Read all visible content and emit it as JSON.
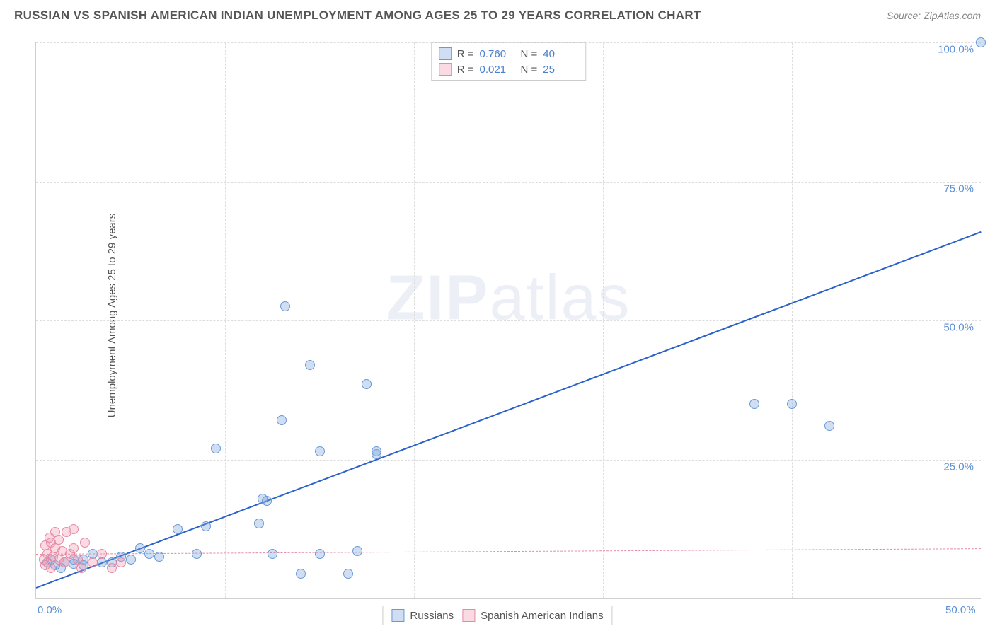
{
  "header": {
    "title": "RUSSIAN VS SPANISH AMERICAN INDIAN UNEMPLOYMENT AMONG AGES 25 TO 29 YEARS CORRELATION CHART",
    "source_label": "Source: ",
    "source_name": "ZipAtlas.com"
  },
  "watermark": {
    "part1": "ZIP",
    "part2": "atlas"
  },
  "chart": {
    "type": "scatter",
    "y_axis_label": "Unemployment Among Ages 25 to 29 years",
    "background_color": "#ffffff",
    "grid_color": "#dddddd",
    "axis_color": "#d0d0d0",
    "tick_label_color": "#5b8fd6",
    "label_fontsize": 15,
    "xlim": [
      0,
      50
    ],
    "ylim": [
      0,
      100
    ],
    "x_ticks": [
      {
        "value": 0,
        "label": "0.0%"
      },
      {
        "value": 50,
        "label": "50.0%"
      }
    ],
    "y_ticks": [
      {
        "value": 25,
        "label": "25.0%"
      },
      {
        "value": 50,
        "label": "50.0%"
      },
      {
        "value": 75,
        "label": "75.0%"
      },
      {
        "value": 100,
        "label": "100.0%"
      }
    ],
    "series": [
      {
        "id": "russians",
        "label": "Russians",
        "marker_fill": "rgba(120,160,220,0.35)",
        "marker_stroke": "#6a9ad4",
        "marker_size": 14,
        "trend": {
          "x1": 0,
          "y1": 2,
          "x2": 50,
          "y2": 66,
          "color": "#2962c9",
          "width": 2,
          "dash": "solid"
        },
        "stats": {
          "r": "0.760",
          "n": "40"
        },
        "points": [
          [
            50,
            100
          ],
          [
            38,
            35
          ],
          [
            40,
            35
          ],
          [
            42,
            31
          ],
          [
            13.2,
            52.5
          ],
          [
            14.5,
            42
          ],
          [
            17.5,
            38.5
          ],
          [
            13,
            32
          ],
          [
            18,
            26
          ],
          [
            18,
            26.4
          ],
          [
            15,
            26.5
          ],
          [
            9.5,
            27
          ],
          [
            12,
            18
          ],
          [
            12.2,
            17.5
          ],
          [
            11.8,
            13.5
          ],
          [
            9,
            13
          ],
          [
            7.5,
            12.5
          ],
          [
            8.5,
            8
          ],
          [
            15,
            8
          ],
          [
            17,
            8.5
          ],
          [
            5.5,
            9
          ],
          [
            6,
            8
          ],
          [
            6.5,
            7.5
          ],
          [
            5,
            7
          ],
          [
            4.5,
            7.5
          ],
          [
            4,
            6.5
          ],
          [
            3.5,
            6.5
          ],
          [
            3,
            8
          ],
          [
            2.5,
            7
          ],
          [
            2.5,
            6
          ],
          [
            2,
            7
          ],
          [
            2,
            6.2
          ],
          [
            1.5,
            6.5
          ],
          [
            1.3,
            5.5
          ],
          [
            1,
            6
          ],
          [
            0.8,
            7
          ],
          [
            0.6,
            6.5
          ],
          [
            14,
            4.5
          ],
          [
            16.5,
            4.5
          ],
          [
            12.5,
            8
          ]
        ]
      },
      {
        "id": "spanish",
        "label": "Spanish American Indians",
        "marker_fill": "rgba(240,150,175,0.35)",
        "marker_stroke": "#e48aa4",
        "marker_size": 14,
        "trend": {
          "x1": 0,
          "y1": 8,
          "x2": 50,
          "y2": 9,
          "color": "#e48aa4",
          "width": 1,
          "dash": "dashed"
        },
        "stats": {
          "r": "0.021",
          "n": "25"
        },
        "points": [
          [
            0.4,
            7
          ],
          [
            0.5,
            6
          ],
          [
            0.5,
            9.5
          ],
          [
            0.6,
            8
          ],
          [
            0.7,
            11
          ],
          [
            0.8,
            10
          ],
          [
            0.8,
            5.5
          ],
          [
            0.9,
            7.5
          ],
          [
            1.0,
            9
          ],
          [
            1.0,
            12
          ],
          [
            1.2,
            7
          ],
          [
            1.2,
            10.5
          ],
          [
            1.4,
            8.5
          ],
          [
            1.5,
            6.5
          ],
          [
            1.6,
            12
          ],
          [
            1.8,
            8
          ],
          [
            2.0,
            9
          ],
          [
            2.0,
            12.5
          ],
          [
            2.2,
            7
          ],
          [
            2.4,
            5.5
          ],
          [
            2.6,
            10
          ],
          [
            3.0,
            6.5
          ],
          [
            3.5,
            8
          ],
          [
            4.0,
            5.5
          ],
          [
            4.5,
            6.5
          ]
        ]
      }
    ]
  },
  "legend_top": {
    "r_label": "R =",
    "n_label": "N ="
  },
  "legend_bottom_labels": {
    "russians": "Russians",
    "spanish": "Spanish American Indians"
  }
}
